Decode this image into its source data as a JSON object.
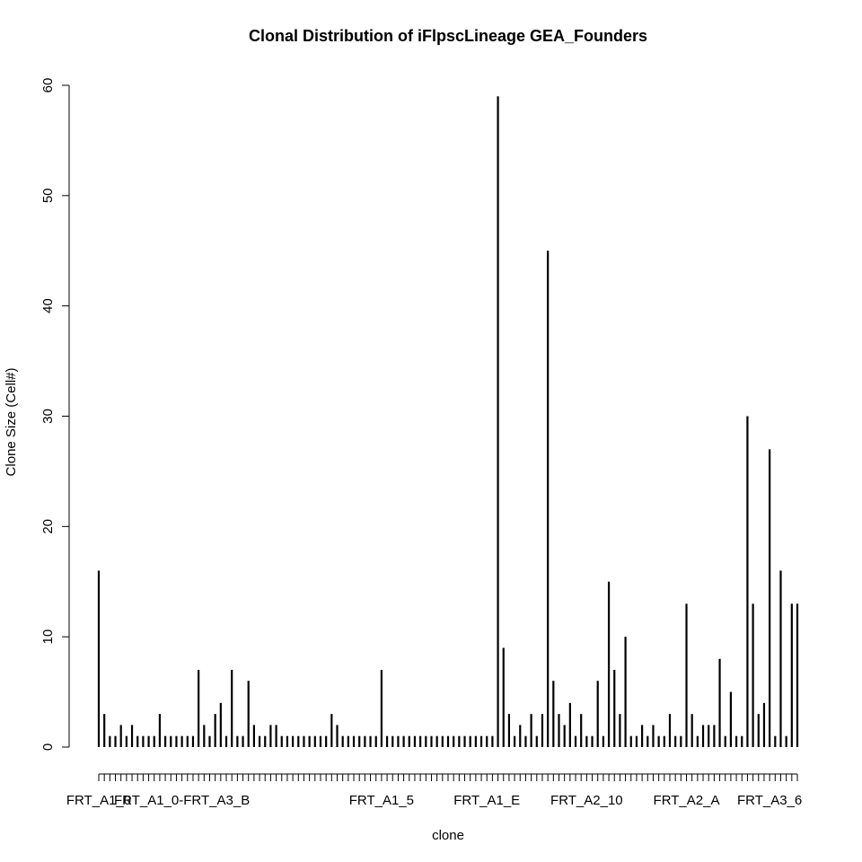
{
  "chart_data": {
    "type": "bar",
    "style": "needle",
    "title": "Clonal Distribution of iFlpscLineage GEA_Founders",
    "xlabel": "clone",
    "ylabel": "Clone Size (Cell#)",
    "ylim": [
      0,
      60
    ],
    "yticks": [
      0,
      10,
      20,
      30,
      40,
      50,
      60
    ],
    "grid": false,
    "bar_color": "#000000",
    "x_tick_labels": [
      {
        "index": 0,
        "label": "FRT_A1_0"
      },
      {
        "index": 15,
        "label": "FRT_A1_0-FRT_A3_B"
      },
      {
        "index": 51,
        "label": "FRT_A1_5"
      },
      {
        "index": 70,
        "label": "FRT_A1_E"
      },
      {
        "index": 88,
        "label": "FRT_A2_10"
      },
      {
        "index": 106,
        "label": "FRT_A2_A"
      },
      {
        "index": 121,
        "label": "FRT_A3_6"
      }
    ],
    "values": [
      16,
      3,
      1,
      1,
      2,
      1,
      2,
      1,
      1,
      1,
      1,
      3,
      1,
      1,
      1,
      1,
      1,
      1,
      7,
      2,
      1,
      3,
      4,
      1,
      7,
      1,
      1,
      6,
      2,
      1,
      1,
      2,
      2,
      1,
      1,
      1,
      1,
      1,
      1,
      1,
      1,
      1,
      3,
      2,
      1,
      1,
      1,
      1,
      1,
      1,
      1,
      7,
      1,
      1,
      1,
      1,
      1,
      1,
      1,
      1,
      1,
      1,
      1,
      1,
      1,
      1,
      1,
      1,
      1,
      1,
      1,
      1,
      59,
      9,
      3,
      1,
      2,
      1,
      3,
      1,
      3,
      45,
      6,
      3,
      2,
      4,
      1,
      3,
      1,
      1,
      6,
      1,
      15,
      7,
      3,
      10,
      1,
      1,
      2,
      1,
      2,
      1,
      1,
      3,
      1,
      1,
      13,
      3,
      1,
      2,
      2,
      2,
      8,
      1,
      5,
      1,
      1,
      30,
      13,
      3,
      4,
      27,
      1,
      16,
      1,
      13,
      13
    ]
  }
}
